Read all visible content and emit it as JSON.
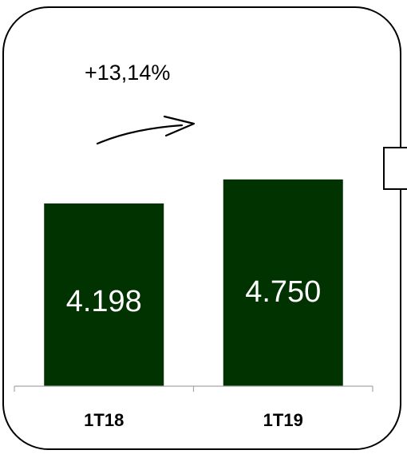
{
  "chart_data": {
    "type": "bar",
    "categories": [
      "1T18",
      "1T19"
    ],
    "values": [
      4198,
      4750
    ],
    "value_labels": [
      "4.198",
      "4.750"
    ],
    "annotation": "+13,14%",
    "ylim": [
      0,
      6000
    ],
    "grid": false,
    "legend": "none",
    "colors": {
      "bar": "#003300",
      "value_text": "#ffffff",
      "axis": "#a6a6a6"
    }
  }
}
